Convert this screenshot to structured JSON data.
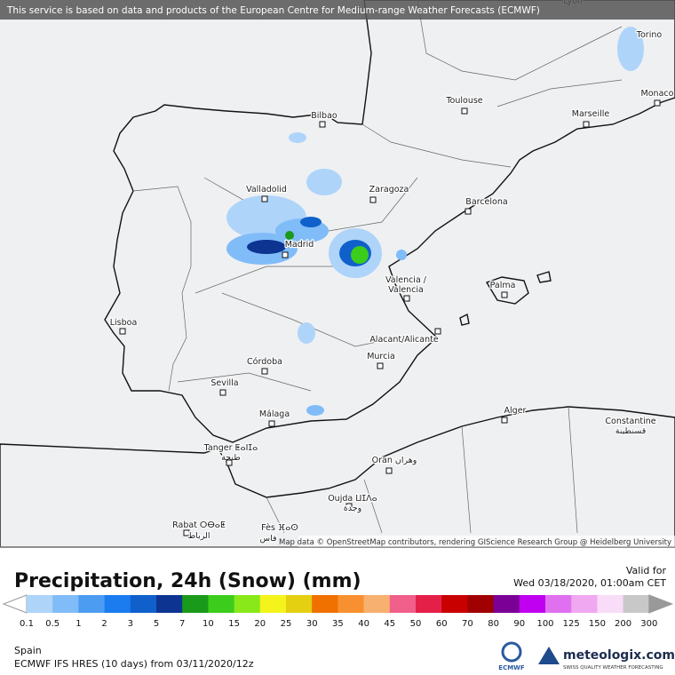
{
  "notice": "This service is based on data and products of the European Centre for Medium-range Weather Forecasts (ECMWF)",
  "map": {
    "places": [
      "Lyon",
      "Torino",
      "Monaco",
      "Toulouse",
      "Marseille",
      "Bilbao",
      "Valladolid",
      "Zaragoza",
      "Barcelona",
      "Madrid",
      "Valencia /",
      "Valencia",
      "Palma",
      "Lisboa",
      "Alacant/Alicante",
      "Murcia",
      "Córdoba",
      "Sevilla",
      "Málaga",
      "Alger",
      "Constantine",
      "قسنطينة",
      "Tanger ⵟⴰⵏⵊⴰ",
      "طنجة",
      "Oran وهران",
      "Oujda ⵡⵊⴷⴰ",
      "وجدة",
      "Rabat ⵔⴱⴰⵟ",
      "الرباط",
      "Fès ⴼⴰⵙ",
      "فاس"
    ],
    "attribution": "Map data © OpenStreetMap contributors, rendering GIScience Research Group @ Heidelberg University"
  },
  "title": "Precipitation, 24h (Snow) (mm)",
  "valid_label": "Valid for",
  "valid_time": "Wed 03/18/2020, 01:00am CET",
  "legend": {
    "labels": [
      0.1,
      0.5,
      1,
      2,
      3,
      5,
      7,
      10,
      15,
      20,
      25,
      30,
      35,
      40,
      45,
      50,
      60,
      70,
      80,
      90,
      100,
      125,
      150,
      200,
      300
    ],
    "colors": [
      "#aed4fa",
      "#80bcf8",
      "#4c9cf2",
      "#1a7cee",
      "#1060cc",
      "#0c3490",
      "#1a9a1a",
      "#3ccc1c",
      "#88e81a",
      "#f4f41c",
      "#e4d010",
      "#f07000",
      "#f89030",
      "#f8b070",
      "#f0608a",
      "#e42048",
      "#c80000",
      "#a00000",
      "#7a0096",
      "#c000f0",
      "#e070f0",
      "#f0a8f0",
      "#f8dcf8",
      "#c8c8c8"
    ]
  },
  "region": "Spain",
  "model": "ECMWF IFS HRES (10 days) from 03/11/2020/12z",
  "logos": {
    "ecmwf": "ECMWF",
    "brand": "meteologix.com",
    "tagline": "SWISS QUALITY WEATHER FORECASTING"
  }
}
